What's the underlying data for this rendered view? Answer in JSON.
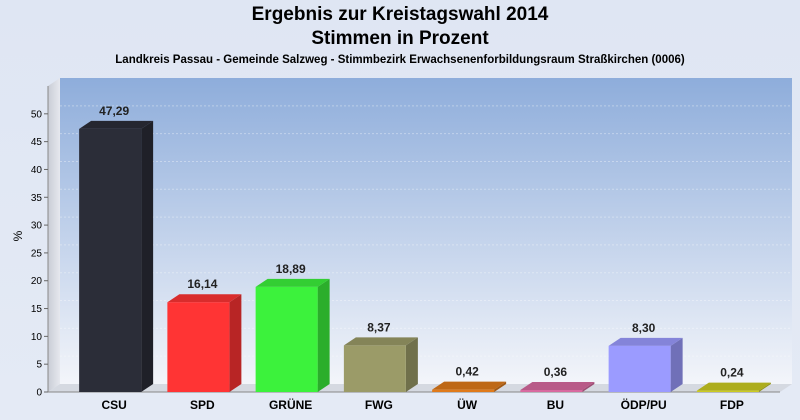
{
  "chart_data": {
    "type": "bar",
    "title": "Ergebnis zur Kreistagswahl 2014",
    "subtitle": "Stimmen in Prozent",
    "description_line": "Landkreis Passau - Gemeinde Salzweg - Stimmbezirk Erwachsenenforbildungsraum Straßkirchen (0006)",
    "ylabel": "%",
    "ylim": [
      0,
      55
    ],
    "yticks": [
      0,
      5,
      10,
      15,
      20,
      25,
      30,
      35,
      40,
      45,
      50
    ],
    "grid": true,
    "categories": [
      "CSU",
      "SPD",
      "GRÜNE",
      "FWG",
      "ÜW",
      "BU",
      "ÖDP/PU",
      "FDP"
    ],
    "values": [
      47.29,
      16.14,
      18.89,
      8.37,
      0.42,
      0.36,
      8.3,
      0.24
    ],
    "value_labels": [
      "47,29",
      "16,14",
      "18,89",
      "8,37",
      "0,42",
      "0,36",
      "8,30",
      "0,24"
    ],
    "colors": [
      "#2b2d38",
      "#ff3434",
      "#3cf23c",
      "#9b9b68",
      "#e07a1a",
      "#d86aa0",
      "#9b9bff",
      "#cccc22"
    ]
  }
}
